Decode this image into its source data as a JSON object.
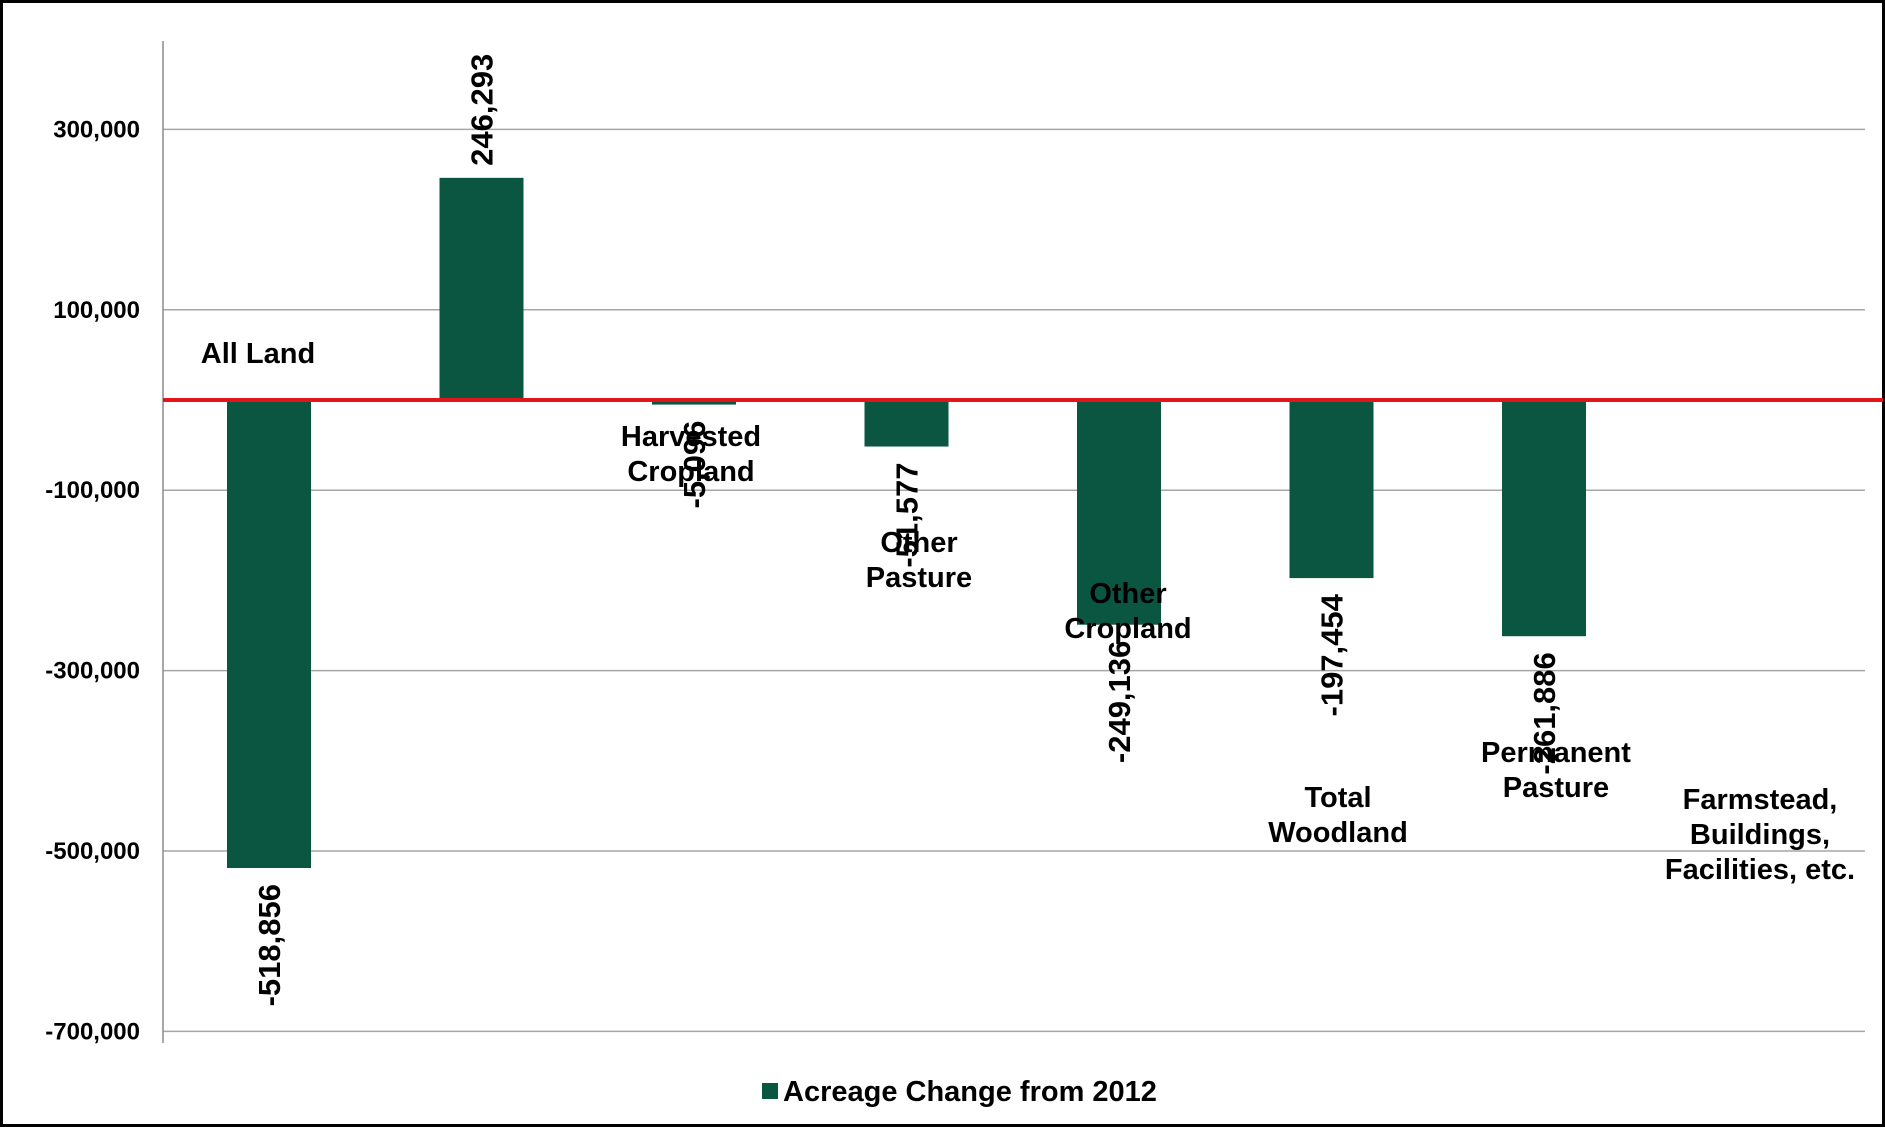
{
  "chart_data": {
    "type": "bar",
    "title": "",
    "xlabel": "",
    "ylabel": "",
    "ylim": [
      -700000,
      400000
    ],
    "yticks": [
      "300,000",
      "100,000",
      "-100,000",
      "-300,000",
      "-500,000",
      "-700,000"
    ],
    "ytick_values": [
      300000,
      100000,
      -100000,
      -300000,
      -500000,
      -700000
    ],
    "grid": true,
    "legend_position": "bottom",
    "categories": [
      "All Land",
      "Harvested Cropland",
      "Other Pasture",
      "Other Cropland",
      "Total Woodland",
      "Permanent Pasture",
      "Farmstead, Buildings, Facilities, etc."
    ],
    "category_lines": [
      [
        "All Land"
      ],
      [
        "Harvested",
        "Cropland"
      ],
      [
        "Other",
        "Pasture"
      ],
      [
        "Other",
        "Cropland"
      ],
      [
        "Total",
        "Woodland"
      ],
      [
        "Permanent",
        "Pasture"
      ],
      [
        "Farmstead,",
        "Buildings,",
        "Facilities, etc."
      ]
    ],
    "series": [
      {
        "name": "Acreage Change from 2012",
        "color": "#0b5641",
        "values": [
          -518856,
          246293,
          -5096,
          -51577,
          -249136,
          -197454,
          -261886
        ],
        "labels": [
          "-518,856",
          "246,293",
          "-5,096",
          "-51,577",
          "-249,136",
          "-197,454",
          "-261,886"
        ]
      }
    ],
    "baseline_color": "#e0161b",
    "gridline_color": "#a6a6a6"
  }
}
